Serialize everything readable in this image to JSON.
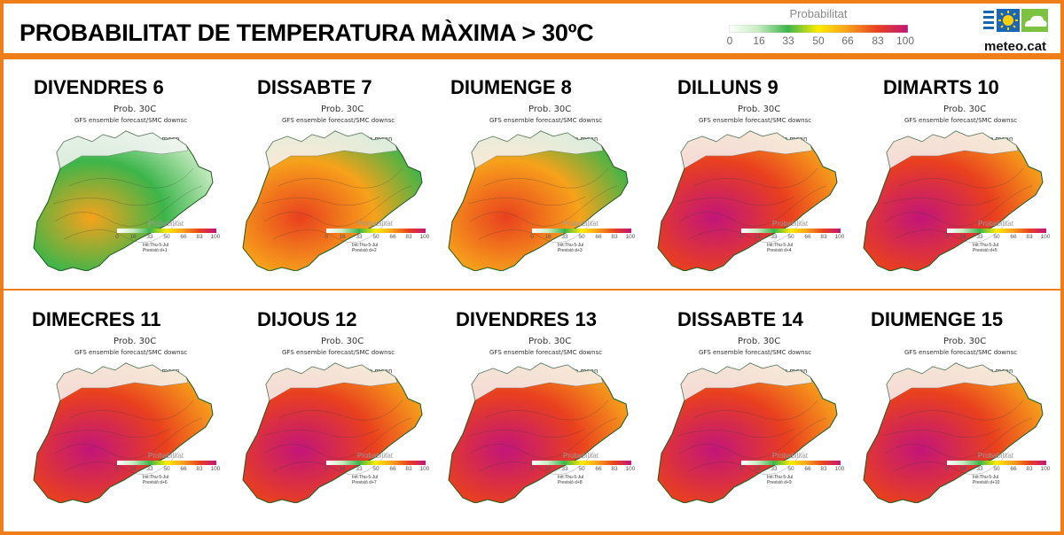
{
  "header": {
    "title": "PROBABILITAT DE TEMPERATURA MÀXIMA > 30ºC",
    "legend_label": "Probabilitat",
    "legend_ticks": [
      "0",
      "16",
      "33",
      "50",
      "66",
      "83",
      "100"
    ],
    "logo_text": "meteo.cat"
  },
  "colors": {
    "accent": "#ee7d1a",
    "scale": [
      "#ffffff",
      "#c9ecc4",
      "#3cb54a",
      "#ffec00",
      "#f7a21b",
      "#e9401e",
      "#c2157a"
    ]
  },
  "map_text": {
    "line1": "Prob. 30C",
    "line2": "GFS ensemble forecast/SMC downsc",
    "line3": "Ensemble mean",
    "legend_label": "Probabilitat",
    "init": "Init:Thu-5-Jul"
  },
  "panels": [
    {
      "day": "DIVENDRES 6",
      "lead": "Previsió d+1",
      "prob": 0.28
    },
    {
      "day": "DISSABTE 7",
      "lead": "Previsió d+2",
      "prob": 0.45
    },
    {
      "day": "DIUMENGE 8",
      "lead": "Previsió d+3",
      "prob": 0.7
    },
    {
      "day": "DILLUNS 9",
      "lead": "Previsió d+4",
      "prob": 0.75
    },
    {
      "day": "DIMARTS 10",
      "lead": "Previsió d+5",
      "prob": 0.78
    },
    {
      "day": "DIMECRES 11",
      "lead": "Previsió d+6",
      "prob": 0.85
    },
    {
      "day": "DIJOUS 12",
      "lead": "Previsió d+7",
      "prob": 0.85
    },
    {
      "day": "DIVENDRES 13",
      "lead": "Previsió d+8",
      "prob": 0.85
    },
    {
      "day": "DISSABTE 14",
      "lead": "Previsió d+9",
      "prob": 0.83
    },
    {
      "day": "DIUMENGE 15",
      "lead": "Previsió d+10",
      "prob": 0.82
    }
  ]
}
